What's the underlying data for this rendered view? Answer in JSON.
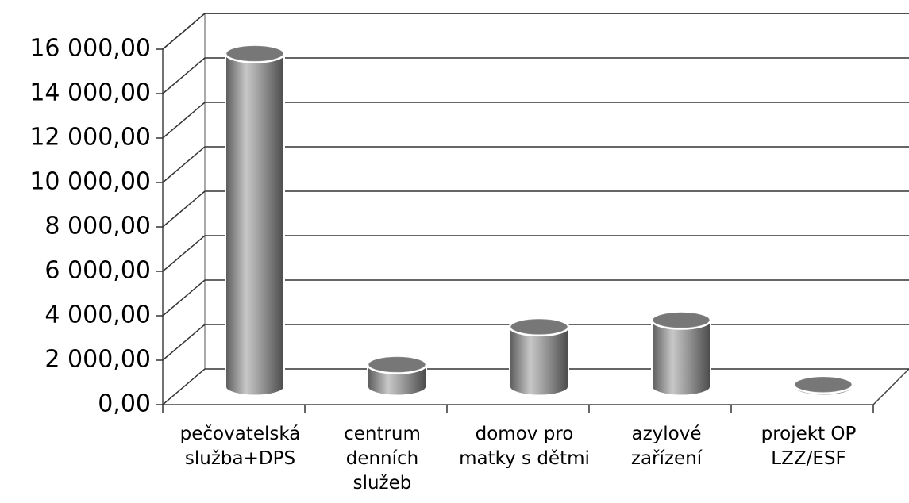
{
  "chart_data": {
    "type": "bar3d",
    "categories": [
      "pečovatelská služba+DPS",
      "centrum denních služeb",
      "domov pro matky s dětmi",
      "azylové zařízení",
      "projekt OP LZZ/ESF"
    ],
    "values": [
      15000,
      1000,
      2700,
      3000,
      100
    ],
    "color": "#8a8a8a",
    "ylim": [
      0,
      16000
    ],
    "yticks": [
      {
        "value": 0,
        "label": "0,00"
      },
      {
        "value": 2000,
        "label": "2 000,00"
      },
      {
        "value": 4000,
        "label": "4 000,00"
      },
      {
        "value": 6000,
        "label": "6 000,00"
      },
      {
        "value": 8000,
        "label": "8 000,00"
      },
      {
        "value": 10000,
        "label": "10 000,00"
      },
      {
        "value": 12000,
        "label": "12 000,00"
      },
      {
        "value": 14000,
        "label": "14 000,00"
      },
      {
        "value": 16000,
        "label": "16 000,00"
      }
    ],
    "grid": true
  }
}
